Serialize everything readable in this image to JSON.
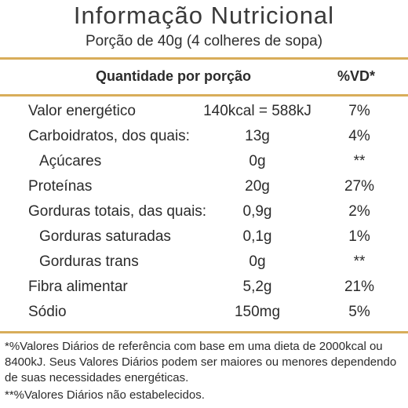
{
  "header": {
    "title": "Informação Nutricional",
    "serving": "Porção de 40g (4 colheres de sopa)"
  },
  "table": {
    "col_quantity": "Quantidade por porção",
    "col_dv": "%VD*",
    "rows": [
      {
        "name": "Valor energético",
        "amount": "140kcal = 588kJ",
        "dv": "7%"
      },
      {
        "name": "Carboidratos, dos quais:",
        "amount": "13g",
        "dv": "4%"
      },
      {
        "name": "Açúcares",
        "amount": "0g",
        "dv": "**"
      },
      {
        "name": "Proteínas",
        "amount": "20g",
        "dv": "27%"
      },
      {
        "name": "Gorduras totais, das quais:",
        "amount": "0,9g",
        "dv": "2%"
      },
      {
        "name": "Gorduras saturadas",
        "amount": "0,1g",
        "dv": "1%"
      },
      {
        "name": "Gorduras trans",
        "amount": "0g",
        "dv": "**"
      },
      {
        "name": "Fibra alimentar",
        "amount": "5,2g",
        "dv": "21%"
      },
      {
        "name": "Sódio",
        "amount": "150mg",
        "dv": "5%"
      }
    ]
  },
  "footnotes": {
    "reference": "*%Valores Diários de referência com base em uma dieta de 2000kcal ou 8400kJ. Seus Valores Diários podem ser maiores ou menores dependendo de suas necessidades energéticas.",
    "not_established": "**%Valores Diários não estabelecidos."
  },
  "colors": {
    "rule": "#d8ad5a",
    "text": "#2b2b2b"
  }
}
